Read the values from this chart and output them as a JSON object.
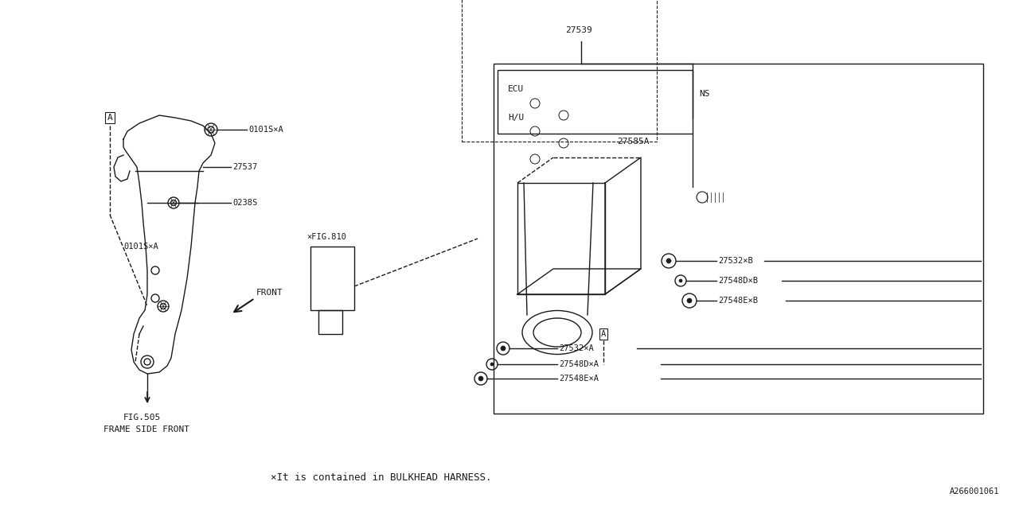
{
  "bg_color": "#ffffff",
  "line_color": "#1a1a1a",
  "fig_width": 12.8,
  "fig_height": 6.4,
  "bottom_note": "×It is contained in BULKHEAD HARNESS.",
  "bottom_right_code": "A266001061",
  "front_label": "FRONT",
  "fig505_label": "FIG.505",
  "frame_label": "FRAME SIDE FRONT",
  "fig810_label": "×FIG.810",
  "labels": {
    "0101S_A_top": "0101S×A",
    "27537": "27537",
    "0238S": "0238S",
    "0101S_A_bot": "0101S×A",
    "27539": "27539",
    "NS": "NS",
    "27585A": "27585A",
    "ECU": "ECU",
    "HU": "H/U",
    "A_box_right": "A",
    "27532B": "27532×B",
    "27548DB": "27548D×B",
    "27548EB": "27548E×B",
    "27532A": "27532×A",
    "27548DA": "27548D×A",
    "27548EA": "27548E×A",
    "A_box_left": "A"
  }
}
